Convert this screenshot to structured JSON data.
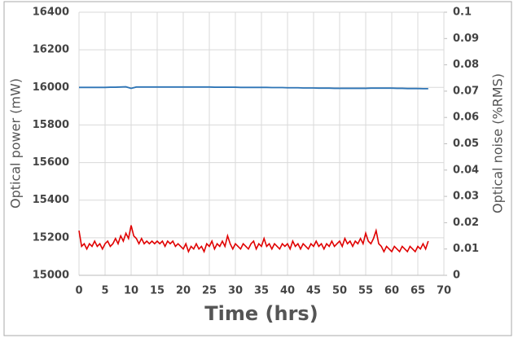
{
  "chart_data": {
    "type": "line",
    "xlabel": "Time (hrs)",
    "ylabel": "Optical power (mW)",
    "y2label": "Optical noise (%RMS)",
    "xlim": [
      0,
      70
    ],
    "xticks": [
      0,
      5,
      10,
      15,
      20,
      25,
      30,
      35,
      40,
      45,
      50,
      55,
      60,
      65,
      70
    ],
    "ylim": [
      15000,
      16400
    ],
    "yticks": [
      15000,
      15200,
      15400,
      15600,
      15800,
      16000,
      16200,
      16400
    ],
    "y2lim": [
      0,
      0.1
    ],
    "y2ticks": [
      0,
      0.01,
      0.02,
      0.03,
      0.04,
      0.05,
      0.06,
      0.07,
      0.08,
      0.09,
      0.1
    ],
    "grid": true,
    "series": [
      {
        "color": "#2e75b6",
        "axis": "y",
        "x": [
          0,
          1,
          2,
          3,
          4,
          5,
          6,
          7,
          8,
          9,
          10,
          11,
          12,
          13,
          14,
          15,
          16,
          17,
          18,
          19,
          20,
          21,
          22,
          23,
          24,
          25,
          26,
          27,
          28,
          29,
          30,
          31,
          32,
          33,
          34,
          35,
          36,
          37,
          38,
          39,
          40,
          41,
          42,
          43,
          44,
          45,
          46,
          47,
          48,
          49,
          50,
          51,
          52,
          53,
          54,
          55,
          56,
          57,
          58,
          59,
          60,
          61,
          62,
          63,
          64,
          65,
          66,
          67
        ],
        "values": [
          16000,
          16000,
          16000,
          16000,
          16000,
          16000,
          16001,
          16001,
          16002,
          16003,
          15995,
          16002,
          16002,
          16002,
          16002,
          16002,
          16002,
          16002,
          16002,
          16002,
          16002,
          16002,
          16002,
          16002,
          16002,
          16002,
          16001,
          16001,
          16001,
          16001,
          16001,
          16000,
          16000,
          16000,
          16000,
          16000,
          16000,
          15999,
          15999,
          15999,
          15998,
          15998,
          15998,
          15997,
          15997,
          15997,
          15996,
          15996,
          15996,
          15995,
          15995,
          15995,
          15995,
          15995,
          15995,
          15995,
          15996,
          15996,
          15996,
          15996,
          15996,
          15995,
          15995,
          15994,
          15994,
          15994,
          15993,
          15993
        ]
      },
      {
        "color": "#e00000",
        "axis": "y2",
        "x": [
          0,
          0.5,
          1,
          1.5,
          2,
          2.5,
          3,
          3.5,
          4,
          4.5,
          5,
          5.5,
          6,
          6.5,
          7,
          7.5,
          8,
          8.5,
          9,
          9.5,
          10,
          10.5,
          11,
          11.5,
          12,
          12.5,
          13,
          13.5,
          14,
          14.5,
          15,
          15.5,
          16,
          16.5,
          17,
          17.5,
          18,
          18.5,
          19,
          19.5,
          20,
          20.5,
          21,
          21.5,
          22,
          22.5,
          23,
          23.5,
          24,
          24.5,
          25,
          25.5,
          26,
          26.5,
          27,
          27.5,
          28,
          28.5,
          29,
          29.5,
          30,
          30.5,
          31,
          31.5,
          32,
          32.5,
          33,
          33.5,
          34,
          34.5,
          35,
          35.5,
          36,
          36.5,
          37,
          37.5,
          38,
          38.5,
          39,
          39.5,
          40,
          40.5,
          41,
          41.5,
          42,
          42.5,
          43,
          43.5,
          44,
          44.5,
          45,
          45.5,
          46,
          46.5,
          47,
          47.5,
          48,
          48.5,
          49,
          49.5,
          50,
          50.5,
          51,
          51.5,
          52,
          52.5,
          53,
          53.5,
          54,
          54.5,
          55,
          55.5,
          56,
          56.5,
          57,
          57.5,
          58,
          58.5,
          59,
          59.5,
          60,
          60.5,
          61,
          61.5,
          62,
          62.5,
          63,
          63.5,
          64,
          64.5,
          65,
          65.5,
          66,
          66.5,
          67
        ],
        "values": [
          0.017,
          0.011,
          0.012,
          0.01,
          0.012,
          0.011,
          0.013,
          0.011,
          0.012,
          0.01,
          0.012,
          0.013,
          0.011,
          0.012,
          0.014,
          0.012,
          0.015,
          0.013,
          0.016,
          0.014,
          0.019,
          0.015,
          0.014,
          0.012,
          0.014,
          0.012,
          0.013,
          0.012,
          0.013,
          0.012,
          0.013,
          0.012,
          0.013,
          0.011,
          0.013,
          0.012,
          0.013,
          0.011,
          0.012,
          0.011,
          0.01,
          0.012,
          0.009,
          0.011,
          0.01,
          0.012,
          0.01,
          0.011,
          0.009,
          0.012,
          0.011,
          0.013,
          0.01,
          0.012,
          0.011,
          0.013,
          0.011,
          0.015,
          0.012,
          0.01,
          0.012,
          0.011,
          0.01,
          0.012,
          0.011,
          0.01,
          0.012,
          0.013,
          0.01,
          0.012,
          0.011,
          0.014,
          0.011,
          0.012,
          0.01,
          0.012,
          0.011,
          0.01,
          0.012,
          0.011,
          0.012,
          0.01,
          0.013,
          0.011,
          0.012,
          0.01,
          0.012,
          0.011,
          0.01,
          0.012,
          0.011,
          0.013,
          0.011,
          0.012,
          0.01,
          0.012,
          0.011,
          0.013,
          0.011,
          0.012,
          0.013,
          0.011,
          0.014,
          0.012,
          0.013,
          0.011,
          0.013,
          0.012,
          0.014,
          0.012,
          0.016,
          0.013,
          0.012,
          0.014,
          0.017,
          0.012,
          0.011,
          0.009,
          0.011,
          0.01,
          0.009,
          0.011,
          0.01,
          0.009,
          0.011,
          0.01,
          0.009,
          0.011,
          0.01,
          0.009,
          0.011,
          0.01,
          0.012,
          0.01,
          0.013
        ]
      }
    ]
  }
}
